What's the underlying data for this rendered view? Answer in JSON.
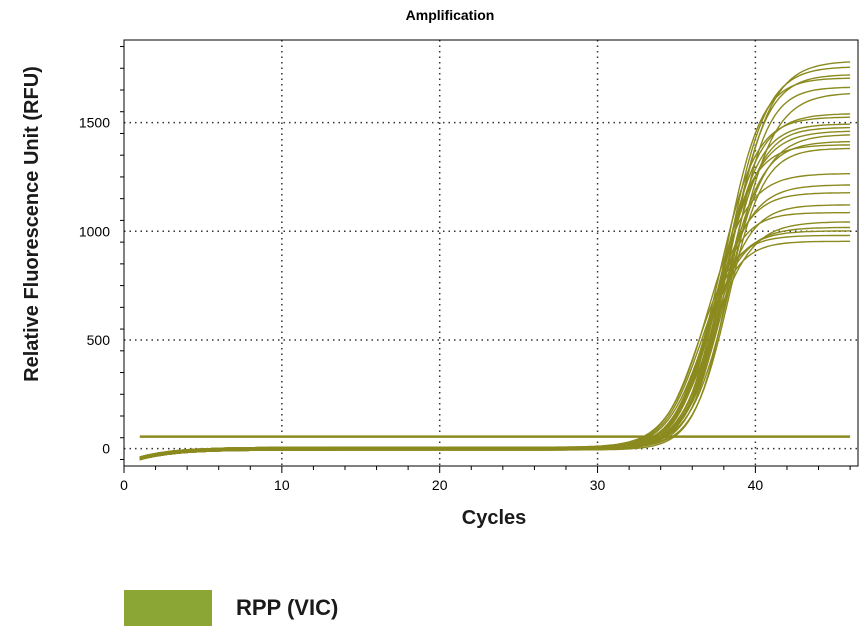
{
  "chart_data": {
    "type": "line",
    "title": "Amplification",
    "xlabel": "Cycles",
    "ylabel": "Relative Fluorescence Unit (RFU)",
    "xlim": [
      0,
      46.5
    ],
    "ylim": [
      -80,
      1880
    ],
    "xticks": [
      0,
      10,
      20,
      30,
      40
    ],
    "yticks": [
      0,
      500,
      1000,
      1500
    ],
    "grid": true,
    "legend": {
      "position": "bottom-left",
      "label": "RPP (VIC)"
    },
    "threshold": 55,
    "x_start": 1,
    "x_end": 46,
    "curve_plateaus": [
      1790,
      1760,
      1720,
      1700,
      1670,
      1640,
      1540,
      1520,
      1500,
      1480,
      1460,
      1440,
      1420,
      1400,
      1380,
      1260,
      1220,
      1180,
      1120,
      1080,
      1050,
      1020,
      1000,
      975,
      960
    ],
    "curve_midpoints": [
      38.4,
      38.2,
      38.3,
      38.0,
      38.5,
      38.6,
      37.8,
      37.6,
      37.9,
      38.1,
      37.7,
      38.2,
      38.0,
      37.5,
      38.3,
      37.0,
      37.3,
      37.1,
      37.4,
      36.9,
      37.2,
      36.8,
      36.6,
      36.4,
      36.7
    ]
  },
  "colors": {
    "series": "#8b8a1e",
    "legend_swatch": "#8ba634",
    "axis": "#000000",
    "grid": "#333333"
  }
}
